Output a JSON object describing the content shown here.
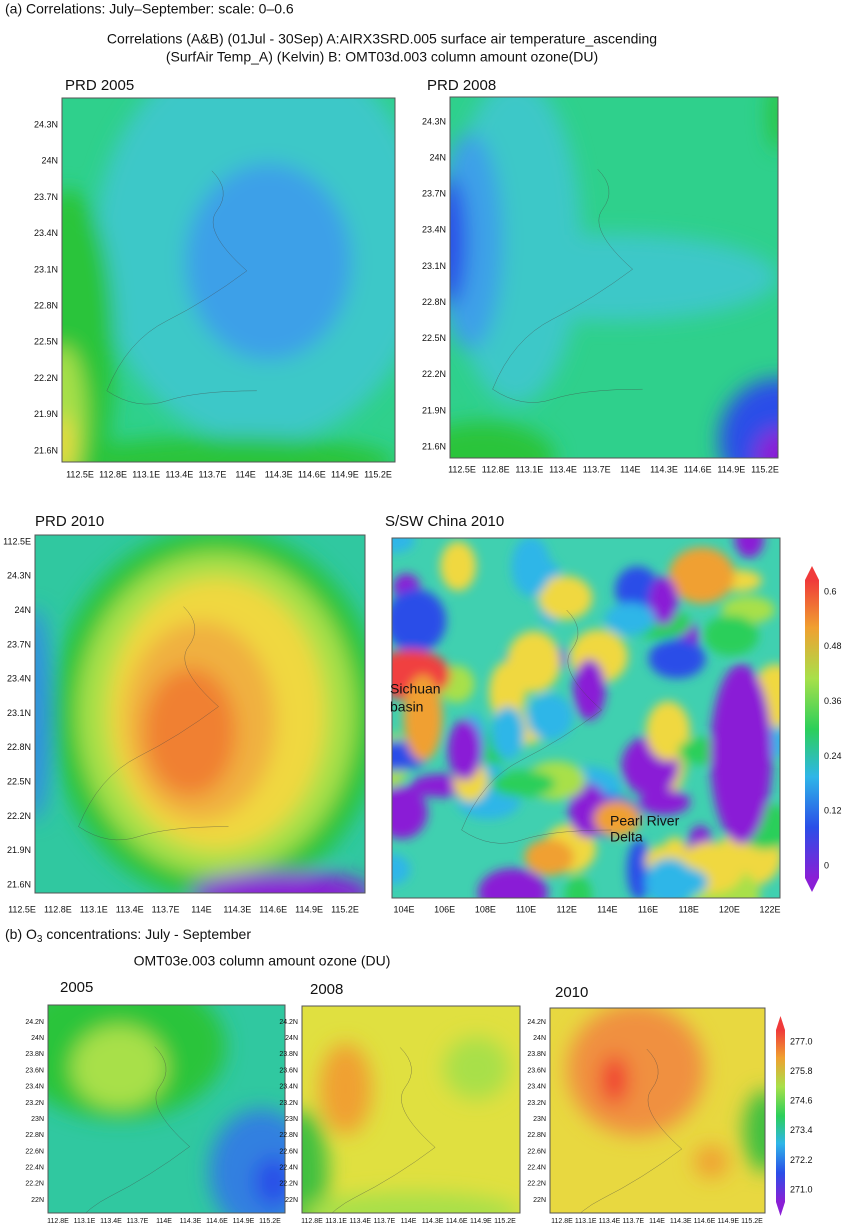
{
  "header": {
    "label": "(a) Correlations: July–September: scale: 0–0.6",
    "title_lines": [
      "Correlations (A&B) (01Jul - 30Sep) A:AIRX3SRD.005 surface air temperature_ascending",
      "(SurfAir Temp_A) (Kelvin) B: OMT03d.003 column amount ozone(DU)"
    ]
  },
  "panels": [
    {
      "title": "PRD 2005",
      "yticks": [
        "24.3N",
        "24N",
        "23.7N",
        "23.4N",
        "23.1N",
        "22.8N",
        "22.5N",
        "22.2N",
        "21.9N",
        "21.6N"
      ],
      "xticks": [
        "112.5E",
        "112.8E",
        "113.1E",
        "113.4E",
        "113.7E",
        "114E",
        "114.3E",
        "114.6E",
        "114.9E",
        "115.2E"
      ]
    },
    {
      "title": "PRD 2008",
      "yticks": [
        "24.3N",
        "24N",
        "23.7N",
        "23.4N",
        "23.1N",
        "22.8N",
        "22.5N",
        "22.2N",
        "21.9N",
        "21.6N"
      ],
      "xticks": [
        "112.5E",
        "112.8E",
        "113.1E",
        "113.4E",
        "113.7E",
        "114E",
        "114.3E",
        "114.6E",
        "114.9E",
        "115.2E"
      ]
    },
    {
      "title": "PRD 2010",
      "yticks": [
        "112.5E",
        "24.3N",
        "24N",
        "23.7N",
        "23.4N",
        "23.1N",
        "22.8N",
        "22.5N",
        "22.2N",
        "21.9N",
        "21.6N"
      ],
      "xticks": [
        "112.5E",
        "112.8E",
        "113.1E",
        "113.4E",
        "113.7E",
        "114E",
        "114.3E",
        "114.6E",
        "114.9E",
        "115.2E"
      ]
    },
    {
      "title": "S/SW China 2010",
      "yticks": [],
      "xticks": [
        "104E",
        "106E",
        "108E",
        "110E",
        "112E",
        "114E",
        "116E",
        "118E",
        "120E",
        "122E"
      ],
      "annotations": [
        "Sichuan",
        "basin",
        "Pearl River",
        "Delta"
      ]
    }
  ],
  "colorbar": {
    "labels": [
      "0.6",
      "0.48",
      "0.36",
      "0.24",
      "0.12",
      "0"
    ]
  },
  "section_b": {
    "label_prefix": "(b) O",
    "label_sub": "3",
    "label_rest": " concentrations: July - September",
    "subtitle": "OMT03e.003 column amount  ozone (DU)",
    "panels": [
      {
        "title": "2005",
        "yticks": [
          "24.2N",
          "24N",
          "23.8N",
          "23.6N",
          "23.4N",
          "23.2N",
          "23N",
          "22.8N",
          "22.6N",
          "22.4N",
          "22.2N",
          "22N"
        ],
        "xticks": [
          "112.8E",
          "113.1E",
          "113.4E",
          "113.7E",
          "114E",
          "114.3E",
          "114.6E",
          "114.9E",
          "115.2E"
        ]
      },
      {
        "title": "2008",
        "yticks": [
          "24.2N",
          "24N",
          "23.8N",
          "23.6N",
          "23.4N",
          "23.2N",
          "23N",
          "22.8N",
          "22.6N",
          "22.4N",
          "22.2N",
          "22N"
        ],
        "xticks": [
          "112.8E",
          "113.1E",
          "113.4E",
          "113.7E",
          "114E",
          "114.3E",
          "114.6E",
          "114.9E",
          "115.2E"
        ]
      },
      {
        "title": "2010",
        "yticks": [
          "24.2N",
          "24N",
          "23.8N",
          "23.6N",
          "23.4N",
          "23.2N",
          "23N",
          "22.8N",
          "22.6N",
          "22.4N",
          "22.2N",
          "22N"
        ],
        "xticks": [
          "112.8E",
          "113.1E",
          "113.4E",
          "113.7E",
          "114E",
          "114.3E",
          "114.6E",
          "114.9E",
          "115.2E"
        ]
      }
    ],
    "colorbar": {
      "labels": [
        "277.0",
        "275.8",
        "274.6",
        "273.4",
        "272.2",
        "271.0"
      ]
    }
  }
}
